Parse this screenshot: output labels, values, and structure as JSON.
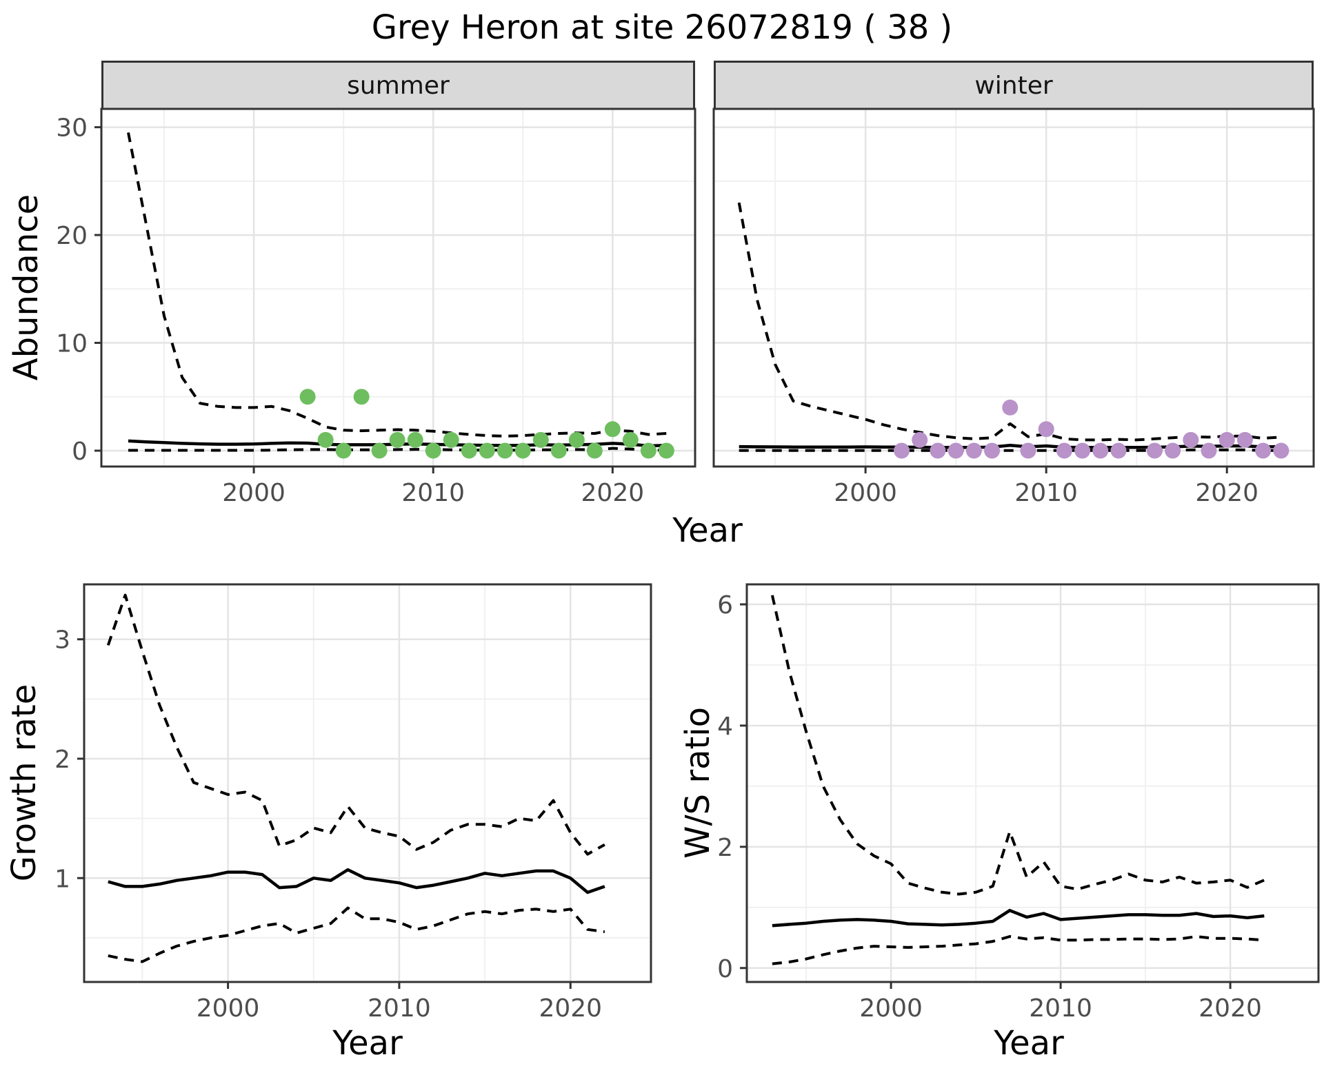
{
  "title": "Grey Heron at site 26072819 ( 38 )",
  "facets": [
    {
      "label": "summer"
    },
    {
      "label": "winter"
    }
  ],
  "axis_titles": {
    "abundance": "Abundance",
    "year_top": "Year",
    "growth_rate": "Growth rate",
    "ws_ratio": "W/S ratio",
    "year_bottom_left": "Year",
    "year_bottom_right": "Year"
  },
  "colors": {
    "summer_point": "#6EBE5F",
    "winter_point": "#B892C9",
    "line": "#000000",
    "strip_bg": "#d9d9d9",
    "panel_border": "#333333",
    "grid_major": "#e4e4e4",
    "grid_minor": "#f0f0f0",
    "tick_label": "#4d4d4d"
  },
  "chart_data": [
    {
      "id": "abundance-summer",
      "type": "line",
      "facet": "summer",
      "title": "",
      "xlabel": "Year",
      "ylabel": "Abundance",
      "xlim": [
        1991.5,
        2024.6
      ],
      "ylim": [
        -1.47,
        31.7
      ],
      "x_ticks": [
        2000,
        2010,
        2020
      ],
      "x_minor": [
        1995,
        2005,
        2015
      ],
      "y_ticks": [
        0,
        10,
        20,
        30
      ],
      "y_minor": [
        5,
        15,
        25
      ],
      "show_y_axis": true,
      "point_color": "#6EBE5F",
      "years": [
        1993,
        1994,
        1995,
        1996,
        1997,
        1998,
        1999,
        2000,
        2001,
        2002,
        2003,
        2004,
        2005,
        2006,
        2007,
        2008,
        2009,
        2010,
        2011,
        2012,
        2013,
        2014,
        2015,
        2016,
        2017,
        2018,
        2019,
        2020,
        2021,
        2022,
        2023
      ],
      "series": [
        {
          "name": "upper_ci",
          "style": "dashed",
          "values": [
            29.5,
            21,
            12.5,
            6.8,
            4.4,
            4.1,
            4.0,
            4.0,
            4.1,
            3.7,
            3.0,
            2.2,
            1.9,
            1.85,
            1.9,
            1.95,
            1.9,
            1.8,
            1.65,
            1.5,
            1.4,
            1.35,
            1.4,
            1.5,
            1.6,
            1.65,
            1.6,
            1.9,
            1.8,
            1.5,
            1.6
          ]
        },
        {
          "name": "lower_ci",
          "style": "dashed",
          "values": [
            0.03,
            0.03,
            0.03,
            0.03,
            0.03,
            0.03,
            0.03,
            0.03,
            0.05,
            0.08,
            0.1,
            0.1,
            0.08,
            0.08,
            0.08,
            0.1,
            0.12,
            0.1,
            0.08,
            0.06,
            0.05,
            0.05,
            0.05,
            0.08,
            0.08,
            0.1,
            0.08,
            0.22,
            0.15,
            0.05,
            0.05
          ]
        },
        {
          "name": "median",
          "style": "solid",
          "values": [
            0.9,
            0.82,
            0.75,
            0.68,
            0.63,
            0.6,
            0.6,
            0.62,
            0.68,
            0.72,
            0.7,
            0.58,
            0.55,
            0.55,
            0.55,
            0.6,
            0.62,
            0.58,
            0.55,
            0.52,
            0.5,
            0.48,
            0.5,
            0.55,
            0.52,
            0.55,
            0.58,
            0.68,
            0.6,
            0.45,
            0.5
          ]
        }
      ],
      "points": [
        [
          2003,
          5
        ],
        [
          2004,
          1
        ],
        [
          2005,
          0
        ],
        [
          2006,
          5
        ],
        [
          2007,
          0
        ],
        [
          2008,
          1
        ],
        [
          2009,
          1
        ],
        [
          2010,
          0
        ],
        [
          2011,
          1
        ],
        [
          2012,
          0
        ],
        [
          2013,
          0
        ],
        [
          2014,
          0
        ],
        [
          2015,
          0
        ],
        [
          2016,
          1
        ],
        [
          2017,
          0
        ],
        [
          2018,
          1
        ],
        [
          2019,
          0
        ],
        [
          2020,
          2
        ],
        [
          2021,
          1
        ],
        [
          2022,
          0
        ],
        [
          2023,
          0
        ]
      ]
    },
    {
      "id": "abundance-winter",
      "type": "line",
      "facet": "winter",
      "title": "",
      "xlabel": "Year",
      "ylabel": "Abundance",
      "xlim": [
        1991.6,
        2024.8
      ],
      "ylim": [
        -1.47,
        31.7
      ],
      "x_ticks": [
        2000,
        2010,
        2020
      ],
      "x_minor": [
        1995,
        2005,
        2015
      ],
      "y_ticks": [
        0,
        10,
        20,
        30
      ],
      "y_minor": [
        5,
        15,
        25
      ],
      "show_y_axis": false,
      "point_color": "#B892C9",
      "years": [
        1993,
        1994,
        1995,
        1996,
        1997,
        1998,
        1999,
        2000,
        2001,
        2002,
        2003,
        2004,
        2005,
        2006,
        2007,
        2008,
        2009,
        2010,
        2011,
        2012,
        2013,
        2014,
        2015,
        2016,
        2017,
        2018,
        2019,
        2020,
        2021,
        2022,
        2023
      ],
      "series": [
        {
          "name": "upper_ci",
          "style": "dashed",
          "values": [
            23,
            14,
            8,
            4.6,
            4.1,
            3.7,
            3.3,
            2.9,
            2.4,
            2.0,
            1.7,
            1.4,
            1.2,
            1.1,
            1.2,
            2.5,
            1.3,
            1.55,
            1.1,
            1.0,
            1.0,
            1.05,
            1.0,
            1.1,
            1.2,
            1.3,
            1.25,
            1.35,
            1.35,
            1.15,
            1.25
          ]
        },
        {
          "name": "lower_ci",
          "style": "dashed",
          "values": [
            0.02,
            0.02,
            0.02,
            0.02,
            0.02,
            0.02,
            0.02,
            0.02,
            0.02,
            0.02,
            0.02,
            0.02,
            0.02,
            0.02,
            0.02,
            0.02,
            0.02,
            0.02,
            0.02,
            0.02,
            0.02,
            0.02,
            0.02,
            0.02,
            0.02,
            0.07,
            0.07,
            0.07,
            0.07,
            0.02,
            0.02
          ]
        },
        {
          "name": "median",
          "style": "solid",
          "values": [
            0.38,
            0.36,
            0.35,
            0.34,
            0.34,
            0.34,
            0.34,
            0.35,
            0.34,
            0.33,
            0.32,
            0.3,
            0.3,
            0.3,
            0.33,
            0.5,
            0.36,
            0.44,
            0.32,
            0.3,
            0.3,
            0.3,
            0.3,
            0.32,
            0.35,
            0.42,
            0.4,
            0.44,
            0.44,
            0.35,
            0.38
          ]
        }
      ],
      "points": [
        [
          2002,
          0
        ],
        [
          2003,
          1
        ],
        [
          2004,
          0
        ],
        [
          2005,
          0
        ],
        [
          2006,
          0
        ],
        [
          2007,
          0
        ],
        [
          2008,
          4
        ],
        [
          2009,
          0
        ],
        [
          2010,
          2
        ],
        [
          2011,
          0
        ],
        [
          2012,
          0
        ],
        [
          2013,
          0
        ],
        [
          2014,
          0
        ],
        [
          2016,
          0
        ],
        [
          2017,
          0
        ],
        [
          2018,
          1
        ],
        [
          2019,
          0
        ],
        [
          2020,
          1
        ],
        [
          2021,
          1
        ],
        [
          2022,
          0
        ],
        [
          2023,
          0
        ]
      ]
    },
    {
      "id": "growth-rate",
      "type": "line",
      "facet": "",
      "title": "",
      "xlabel": "Year",
      "ylabel": "Growth rate",
      "xlim": [
        1991.6,
        2024.7
      ],
      "ylim": [
        0.13,
        3.46
      ],
      "x_ticks": [
        2000,
        2010,
        2020
      ],
      "x_minor": [
        1995,
        2005,
        2015
      ],
      "y_ticks": [
        1,
        2,
        3
      ],
      "y_minor": [
        0.5,
        1.5,
        2.5
      ],
      "show_y_axis": true,
      "point_color": "#000000",
      "years": [
        1993,
        1994,
        1995,
        1996,
        1997,
        1998,
        1999,
        2000,
        2001,
        2002,
        2003,
        2004,
        2005,
        2006,
        2007,
        2008,
        2009,
        2010,
        2011,
        2012,
        2013,
        2014,
        2015,
        2016,
        2017,
        2018,
        2019,
        2020,
        2021,
        2022
      ],
      "series": [
        {
          "name": "upper_ci",
          "style": "dashed",
          "values": [
            2.95,
            3.37,
            2.9,
            2.45,
            2.1,
            1.8,
            1.75,
            1.7,
            1.72,
            1.65,
            1.27,
            1.32,
            1.42,
            1.38,
            1.6,
            1.42,
            1.38,
            1.35,
            1.24,
            1.3,
            1.4,
            1.45,
            1.45,
            1.43,
            1.5,
            1.48,
            1.65,
            1.38,
            1.2,
            1.28
          ]
        },
        {
          "name": "lower_ci",
          "style": "dashed",
          "values": [
            0.35,
            0.32,
            0.3,
            0.37,
            0.43,
            0.47,
            0.5,
            0.52,
            0.56,
            0.6,
            0.62,
            0.54,
            0.58,
            0.62,
            0.75,
            0.66,
            0.66,
            0.63,
            0.57,
            0.6,
            0.65,
            0.7,
            0.72,
            0.7,
            0.73,
            0.74,
            0.72,
            0.74,
            0.57,
            0.55
          ]
        },
        {
          "name": "median",
          "style": "solid",
          "values": [
            0.97,
            0.93,
            0.93,
            0.95,
            0.98,
            1.0,
            1.02,
            1.05,
            1.05,
            1.03,
            0.92,
            0.93,
            1.0,
            0.98,
            1.07,
            1.0,
            0.98,
            0.96,
            0.92,
            0.94,
            0.97,
            1.0,
            1.04,
            1.02,
            1.04,
            1.06,
            1.06,
            1.0,
            0.88,
            0.93
          ]
        }
      ],
      "points": []
    },
    {
      "id": "ws-ratio",
      "type": "line",
      "facet": "",
      "title": "",
      "xlabel": "Year",
      "ylabel": "W/S ratio",
      "xlim": [
        1991.5,
        2025.2
      ],
      "ylim": [
        -0.23,
        6.33
      ],
      "x_ticks": [
        2000,
        2010,
        2020
      ],
      "x_minor": [
        1995,
        2005,
        2015
      ],
      "y_ticks": [
        0,
        2,
        4,
        6
      ],
      "y_minor": [
        1,
        3,
        5
      ],
      "show_y_axis": true,
      "point_color": "#000000",
      "years": [
        1993,
        1994,
        1995,
        1996,
        1997,
        1998,
        1999,
        2000,
        2001,
        2002,
        2003,
        2004,
        2005,
        2006,
        2007,
        2008,
        2009,
        2010,
        2011,
        2012,
        2013,
        2014,
        2015,
        2016,
        2017,
        2018,
        2019,
        2020,
        2021,
        2022
      ],
      "series": [
        {
          "name": "upper_ci",
          "style": "dashed",
          "values": [
            6.15,
            4.9,
            3.9,
            3.0,
            2.45,
            2.05,
            1.85,
            1.72,
            1.4,
            1.32,
            1.25,
            1.22,
            1.25,
            1.35,
            2.25,
            1.5,
            1.75,
            1.35,
            1.3,
            1.38,
            1.45,
            1.55,
            1.45,
            1.42,
            1.5,
            1.4,
            1.42,
            1.45,
            1.33,
            1.45
          ]
        },
        {
          "name": "lower_ci",
          "style": "dashed",
          "values": [
            0.07,
            0.1,
            0.15,
            0.22,
            0.28,
            0.33,
            0.36,
            0.35,
            0.34,
            0.35,
            0.36,
            0.38,
            0.4,
            0.44,
            0.52,
            0.48,
            0.5,
            0.46,
            0.46,
            0.47,
            0.47,
            0.48,
            0.48,
            0.47,
            0.48,
            0.52,
            0.49,
            0.49,
            0.48,
            0.46
          ]
        },
        {
          "name": "median",
          "style": "solid",
          "values": [
            0.7,
            0.72,
            0.74,
            0.77,
            0.79,
            0.8,
            0.79,
            0.77,
            0.73,
            0.72,
            0.71,
            0.72,
            0.74,
            0.77,
            0.95,
            0.84,
            0.9,
            0.8,
            0.82,
            0.84,
            0.86,
            0.88,
            0.88,
            0.87,
            0.87,
            0.9,
            0.85,
            0.86,
            0.83,
            0.86
          ]
        }
      ],
      "points": []
    }
  ]
}
